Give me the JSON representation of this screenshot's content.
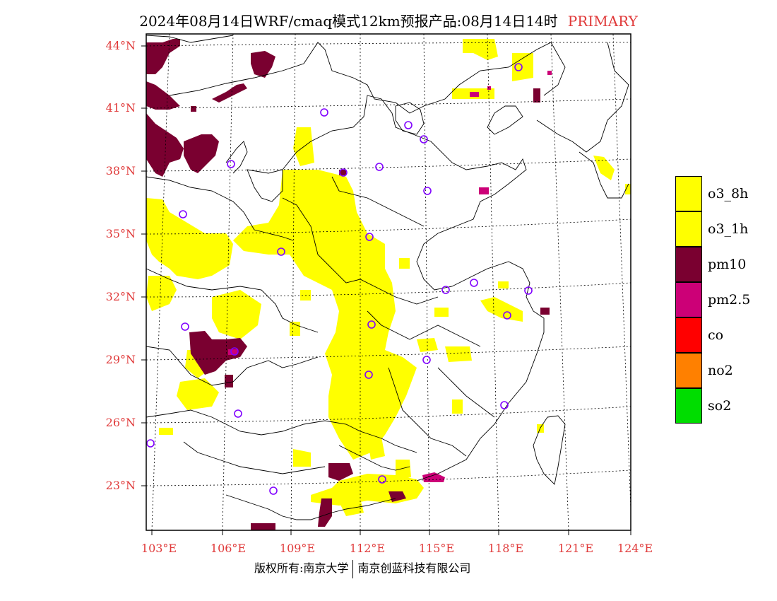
{
  "title": {
    "main": "2024年08月14日WRF/cmaq模式12km预报产品:08月14日14时",
    "tag": "PRIMARY"
  },
  "latitude_labels": [
    "44°N",
    "41°N",
    "38°N",
    "35°N",
    "32°N",
    "29°N",
    "26°N",
    "23°N"
  ],
  "longitude_labels": [
    "103°E",
    "106°E",
    "109°E",
    "112°E",
    "115°E",
    "118°E",
    "121°E",
    "124°E"
  ],
  "legend": [
    {
      "label": "o3_8h",
      "color": "#ffff00"
    },
    {
      "label": "o3_1h",
      "color": "#ffff00"
    },
    {
      "label": "pm10",
      "color": "#7a0030"
    },
    {
      "label": "pm2.5",
      "color": "#cc0077"
    },
    {
      "label": "co",
      "color": "#ff0000"
    },
    {
      "label": "no2",
      "color": "#ff8000"
    },
    {
      "label": "so2",
      "color": "#00dd00"
    }
  ],
  "footer": {
    "left": "版权所有:南京大学",
    "right": "南京创蓝科技有限公司"
  }
}
